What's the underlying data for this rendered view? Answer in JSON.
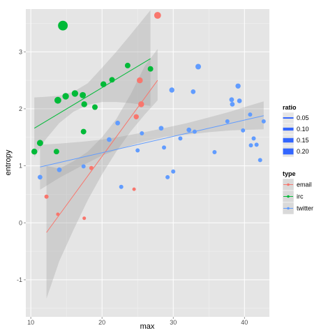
{
  "chart_data": {
    "type": "scatter",
    "xlabel": "max",
    "ylabel": "entropy",
    "xlim": [
      9.3,
      43.5
    ],
    "ylim": [
      -1.65,
      3.75
    ],
    "x_ticks": [
      10,
      20,
      30,
      40
    ],
    "y_ticks": [
      -1,
      0,
      1,
      2,
      3
    ],
    "grid": true,
    "legend_position": "right",
    "size_legend": {
      "title": "ratio",
      "entries": [
        {
          "label": "0.05",
          "value": 0.05
        },
        {
          "label": "0.10",
          "value": 0.1
        },
        {
          "label": "0.15",
          "value": 0.15
        },
        {
          "label": "0.20",
          "value": 0.2
        }
      ]
    },
    "color_legend": {
      "title": "type",
      "entries": [
        {
          "label": "email",
          "color": "#F8766D"
        },
        {
          "label": "irc",
          "color": "#00BA38"
        },
        {
          "label": "twitter",
          "color": "#619CFF"
        }
      ]
    },
    "series": [
      {
        "name": "email",
        "color": "#F8766D",
        "points": [
          {
            "x": 12.2,
            "y": 0.46,
            "ratio": 0.02
          },
          {
            "x": 13.8,
            "y": 0.15,
            "ratio": 0.01
          },
          {
            "x": 17.5,
            "y": 0.08,
            "ratio": 0.01
          },
          {
            "x": 18.5,
            "y": 0.96,
            "ratio": 0.02
          },
          {
            "x": 24.5,
            "y": 0.59,
            "ratio": 0.01
          },
          {
            "x": 24.8,
            "y": 1.86,
            "ratio": 0.04
          },
          {
            "x": 25.3,
            "y": 2.5,
            "ratio": 0.06
          },
          {
            "x": 25.5,
            "y": 2.08,
            "ratio": 0.06
          },
          {
            "x": 27.8,
            "y": 3.64,
            "ratio": 0.09
          }
        ],
        "trend": {
          "x": [
            12.2,
            27.8
          ],
          "y": [
            -0.17,
            2.5
          ]
        },
        "band": {
          "x": [
            12.2,
            14,
            16,
            18,
            20,
            22,
            24,
            26,
            27.8
          ],
          "lower": [
            -1.33,
            -0.67,
            -0.12,
            0.4,
            0.85,
            1.25,
            1.6,
            1.9,
            2.15
          ],
          "upper": [
            1.0,
            0.95,
            1.08,
            1.25,
            1.5,
            1.82,
            2.25,
            2.75,
            3.05
          ]
        }
      },
      {
        "name": "irc",
        "color": "#00BA38",
        "points": [
          {
            "x": 10.5,
            "y": 1.25,
            "ratio": 0.06
          },
          {
            "x": 11.3,
            "y": 1.4,
            "ratio": 0.07
          },
          {
            "x": 13.6,
            "y": 1.25,
            "ratio": 0.05
          },
          {
            "x": 13.8,
            "y": 2.15,
            "ratio": 0.09
          },
          {
            "x": 14.5,
            "y": 3.46,
            "ratio": 0.22
          },
          {
            "x": 14.9,
            "y": 2.22,
            "ratio": 0.08
          },
          {
            "x": 16.2,
            "y": 2.27,
            "ratio": 0.08
          },
          {
            "x": 17.3,
            "y": 2.24,
            "ratio": 0.07
          },
          {
            "x": 17.4,
            "y": 1.6,
            "ratio": 0.05
          },
          {
            "x": 17.5,
            "y": 2.08,
            "ratio": 0.06
          },
          {
            "x": 19.0,
            "y": 2.03,
            "ratio": 0.05
          },
          {
            "x": 20.2,
            "y": 2.43,
            "ratio": 0.06
          },
          {
            "x": 21.4,
            "y": 2.51,
            "ratio": 0.05
          },
          {
            "x": 23.6,
            "y": 2.76,
            "ratio": 0.05
          },
          {
            "x": 26.8,
            "y": 2.7,
            "ratio": 0.05
          }
        ],
        "trend": {
          "x": [
            10.5,
            26.8
          ],
          "y": [
            1.66,
            2.88
          ]
        },
        "band": {
          "x": [
            10.5,
            12,
            14,
            16,
            18,
            20,
            22,
            24,
            26.8
          ],
          "lower": [
            1.15,
            1.45,
            1.75,
            1.95,
            2.07,
            2.12,
            2.12,
            2.1,
            2.05
          ],
          "upper": [
            2.2,
            2.21,
            2.23,
            2.3,
            2.45,
            2.72,
            3.0,
            3.3,
            3.73
          ]
        }
      },
      {
        "name": "twitter",
        "color": "#619CFF",
        "points": [
          {
            "x": 11.3,
            "y": 0.8,
            "ratio": 0.03
          },
          {
            "x": 14.0,
            "y": 0.93,
            "ratio": 0.03
          },
          {
            "x": 17.4,
            "y": 0.99,
            "ratio": 0.02
          },
          {
            "x": 21.0,
            "y": 1.46,
            "ratio": 0.03
          },
          {
            "x": 22.2,
            "y": 1.75,
            "ratio": 0.03
          },
          {
            "x": 22.7,
            "y": 0.63,
            "ratio": 0.02
          },
          {
            "x": 25.0,
            "y": 1.27,
            "ratio": 0.02
          },
          {
            "x": 25.6,
            "y": 1.57,
            "ratio": 0.02
          },
          {
            "x": 28.3,
            "y": 1.66,
            "ratio": 0.03
          },
          {
            "x": 28.7,
            "y": 1.32,
            "ratio": 0.02
          },
          {
            "x": 29.2,
            "y": 0.8,
            "ratio": 0.02
          },
          {
            "x": 29.8,
            "y": 2.33,
            "ratio": 0.04
          },
          {
            "x": 30.0,
            "y": 0.9,
            "ratio": 0.02
          },
          {
            "x": 31.0,
            "y": 1.48,
            "ratio": 0.02
          },
          {
            "x": 32.2,
            "y": 1.63,
            "ratio": 0.03
          },
          {
            "x": 32.8,
            "y": 2.3,
            "ratio": 0.03
          },
          {
            "x": 33.0,
            "y": 1.6,
            "ratio": 0.02
          },
          {
            "x": 33.5,
            "y": 2.74,
            "ratio": 0.05
          },
          {
            "x": 35.8,
            "y": 1.24,
            "ratio": 0.02
          },
          {
            "x": 37.6,
            "y": 1.78,
            "ratio": 0.02
          },
          {
            "x": 38.2,
            "y": 2.16,
            "ratio": 0.03
          },
          {
            "x": 38.3,
            "y": 2.08,
            "ratio": 0.03
          },
          {
            "x": 39.1,
            "y": 2.4,
            "ratio": 0.04
          },
          {
            "x": 39.3,
            "y": 2.14,
            "ratio": 0.03
          },
          {
            "x": 39.8,
            "y": 1.62,
            "ratio": 0.02
          },
          {
            "x": 40.8,
            "y": 1.9,
            "ratio": 0.02
          },
          {
            "x": 40.9,
            "y": 1.36,
            "ratio": 0.02
          },
          {
            "x": 41.3,
            "y": 1.48,
            "ratio": 0.02
          },
          {
            "x": 41.7,
            "y": 1.37,
            "ratio": 0.02
          },
          {
            "x": 42.2,
            "y": 1.1,
            "ratio": 0.02
          },
          {
            "x": 42.7,
            "y": 1.78,
            "ratio": 0.02
          }
        ],
        "trend": {
          "x": [
            11.3,
            42.7
          ],
          "y": [
            0.98,
            1.88
          ]
        },
        "band": {
          "x": [
            11.3,
            14,
            17,
            20,
            23,
            26,
            29,
            32,
            35,
            38,
            40,
            42.7
          ],
          "lower": [
            0.58,
            0.79,
            0.99,
            1.18,
            1.32,
            1.43,
            1.51,
            1.55,
            1.59,
            1.62,
            1.63,
            1.64
          ],
          "upper": [
            1.37,
            1.39,
            1.42,
            1.46,
            1.52,
            1.59,
            1.67,
            1.75,
            1.85,
            1.95,
            2.03,
            2.13
          ]
        }
      }
    ]
  }
}
